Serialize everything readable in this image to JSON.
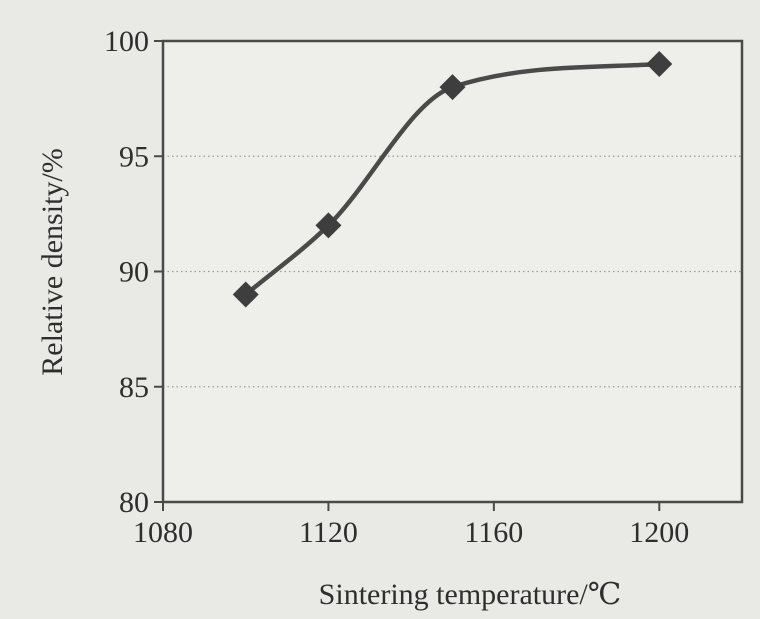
{
  "chart_data": {
    "type": "line",
    "title": "",
    "xlabel": "Sintering temperature/℃",
    "ylabel": "Relative density/%",
    "xlim": [
      1080,
      1220
    ],
    "ylim": [
      80,
      100
    ],
    "x_ticks": [
      1080,
      1120,
      1160,
      1200
    ],
    "y_ticks": [
      80,
      85,
      90,
      95,
      100
    ],
    "grid": "horizontal dotted",
    "marker": "diamond",
    "smooth": true,
    "series": [
      {
        "x": [
          1100,
          1120,
          1150,
          1200
        ],
        "y": [
          89,
          92,
          98,
          99
        ]
      }
    ],
    "colors": {
      "line": "#4a4a4a",
      "marker": "#3e3e3e",
      "axis": "#4a4a4a",
      "grid": "#9a9a9a",
      "plot_bg": "#eeeeeb"
    }
  }
}
